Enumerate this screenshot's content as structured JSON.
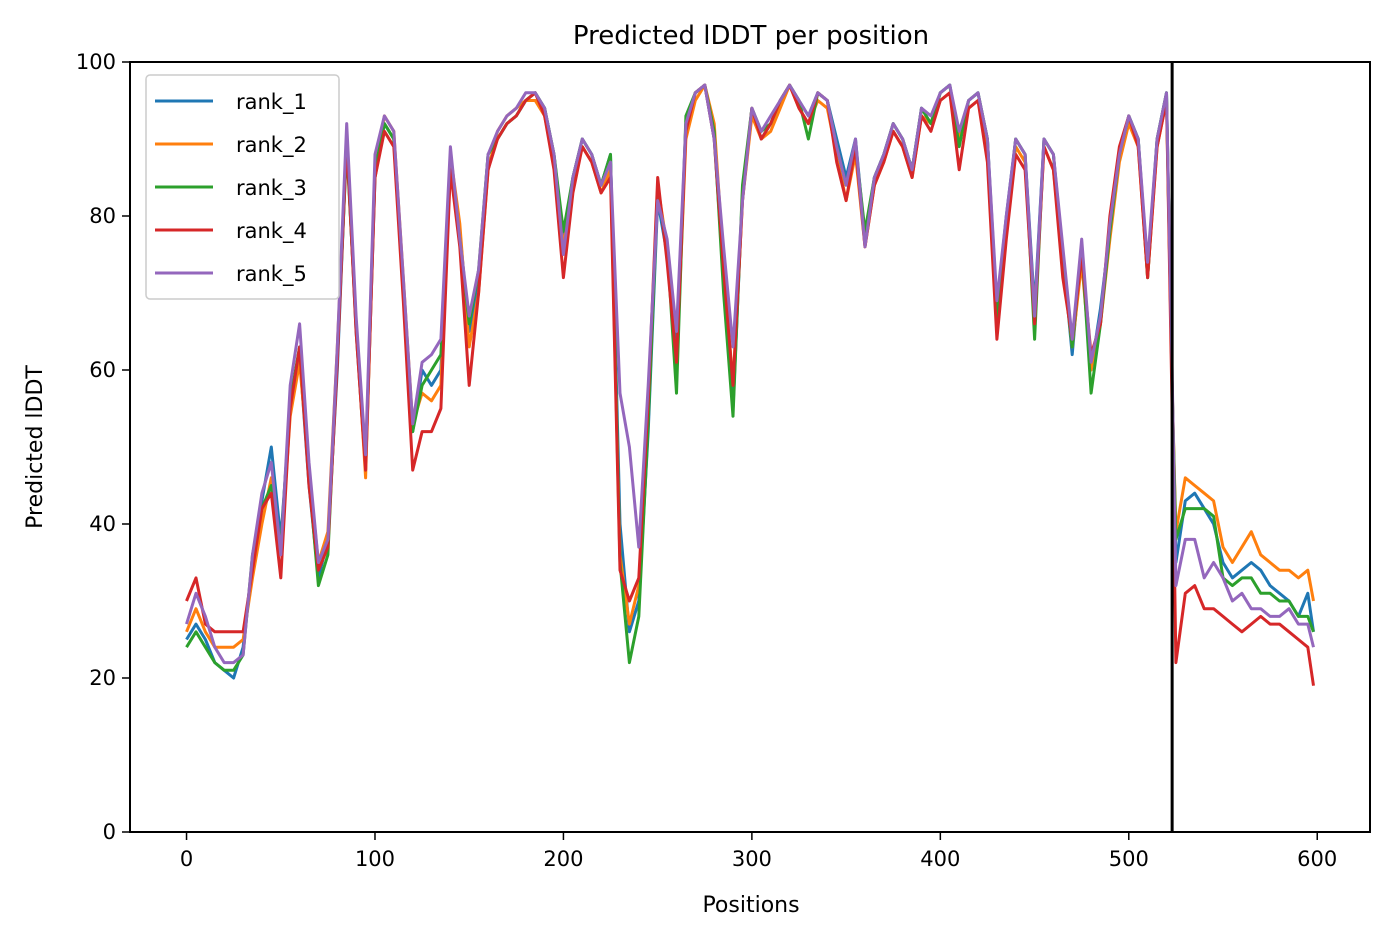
{
  "chart_data": {
    "type": "line",
    "title": "Predicted lDDT per position",
    "xlabel": "Positions",
    "ylabel": "Predicted lDDT",
    "xlim": [
      -30,
      628
    ],
    "ylim": [
      0,
      100
    ],
    "xticks": [
      0,
      100,
      200,
      300,
      400,
      500,
      600
    ],
    "yticks": [
      0,
      20,
      40,
      60,
      80,
      100
    ],
    "grid": false,
    "legend_position": "top-left",
    "vertical_line": {
      "x": 523,
      "color": "#000000"
    },
    "x": [
      0,
      5,
      10,
      15,
      20,
      25,
      30,
      35,
      40,
      45,
      50,
      55,
      60,
      65,
      70,
      75,
      80,
      85,
      90,
      95,
      100,
      105,
      110,
      115,
      120,
      125,
      130,
      135,
      140,
      145,
      150,
      155,
      160,
      165,
      170,
      175,
      180,
      185,
      190,
      195,
      200,
      205,
      210,
      215,
      220,
      225,
      230,
      235,
      240,
      245,
      250,
      255,
      260,
      265,
      270,
      275,
      280,
      285,
      290,
      295,
      300,
      305,
      310,
      315,
      320,
      325,
      330,
      335,
      340,
      345,
      350,
      355,
      360,
      365,
      370,
      375,
      380,
      385,
      390,
      395,
      400,
      405,
      410,
      415,
      420,
      425,
      430,
      435,
      440,
      445,
      450,
      455,
      460,
      465,
      470,
      475,
      480,
      485,
      490,
      495,
      500,
      505,
      510,
      515,
      520,
      523,
      525,
      530,
      535,
      540,
      545,
      550,
      555,
      560,
      565,
      570,
      575,
      580,
      585,
      590,
      595,
      598
    ],
    "series": [
      {
        "name": "rank_1",
        "color": "#1f77b4",
        "values": [
          25,
          27,
          25,
          22,
          21,
          20,
          24,
          35,
          43,
          50,
          38,
          55,
          62,
          45,
          33,
          38,
          60,
          90,
          65,
          47,
          85,
          92,
          90,
          70,
          52,
          60,
          58,
          60,
          87,
          78,
          65,
          72,
          88,
          90,
          92,
          93,
          95,
          96,
          94,
          88,
          77,
          85,
          90,
          88,
          84,
          88,
          40,
          26,
          30,
          52,
          82,
          75,
          62,
          92,
          96,
          97,
          90,
          72,
          55,
          83,
          94,
          90,
          92,
          95,
          97,
          95,
          93,
          96,
          95,
          90,
          85,
          90,
          77,
          85,
          88,
          92,
          90,
          86,
          94,
          92,
          96,
          97,
          90,
          95,
          96,
          90,
          68,
          80,
          90,
          88,
          68,
          90,
          88,
          75,
          62,
          76,
          60,
          68,
          78,
          88,
          93,
          90,
          73,
          90,
          96,
          58,
          35,
          43,
          44,
          42,
          40,
          35,
          33,
          34,
          35,
          34,
          32,
          31,
          30,
          28,
          31,
          26
        ]
      },
      {
        "name": "rank_2",
        "color": "#ff7f0e",
        "values": [
          26,
          29,
          26,
          24,
          24,
          24,
          25,
          33,
          40,
          46,
          36,
          54,
          61,
          47,
          35,
          39,
          63,
          90,
          66,
          46,
          86,
          93,
          91,
          72,
          53,
          57,
          56,
          58,
          88,
          79,
          63,
          70,
          86,
          91,
          93,
          94,
          95,
          95,
          93,
          87,
          76,
          84,
          89,
          87,
          83,
          86,
          36,
          27,
          32,
          55,
          84,
          76,
          60,
          90,
          95,
          97,
          92,
          74,
          58,
          82,
          93,
          90,
          91,
          94,
          97,
          94,
          92,
          95,
          94,
          88,
          82,
          88,
          76,
          84,
          87,
          91,
          89,
          85,
          93,
          92,
          95,
          96,
          90,
          94,
          95,
          89,
          66,
          78,
          89,
          87,
          67,
          89,
          86,
          74,
          63,
          74,
          60,
          66,
          77,
          87,
          92,
          89,
          72,
          89,
          95,
          58,
          39,
          46,
          45,
          44,
          43,
          37,
          35,
          37,
          39,
          36,
          35,
          34,
          34,
          33,
          34,
          30
        ]
      },
      {
        "name": "rank_3",
        "color": "#2ca02c",
        "values": [
          24,
          26,
          24,
          22,
          21,
          21,
          23,
          36,
          42,
          45,
          37,
          56,
          63,
          46,
          32,
          36,
          62,
          89,
          66,
          48,
          86,
          92,
          90,
          70,
          52,
          58,
          60,
          62,
          86,
          77,
          66,
          73,
          88,
          90,
          92,
          93,
          95,
          96,
          94,
          88,
          78,
          85,
          90,
          88,
          84,
          88,
          35,
          22,
          28,
          53,
          83,
          76,
          57,
          93,
          96,
          97,
          91,
          70,
          54,
          84,
          94,
          91,
          92,
          95,
          97,
          95,
          90,
          96,
          95,
          89,
          84,
          89,
          78,
          85,
          88,
          92,
          90,
          86,
          94,
          92,
          96,
          97,
          89,
          95,
          96,
          90,
          66,
          79,
          90,
          88,
          64,
          90,
          88,
          74,
          63,
          76,
          57,
          66,
          78,
          88,
          93,
          90,
          72,
          90,
          96,
          58,
          38,
          42,
          42,
          42,
          41,
          33,
          32,
          33,
          33,
          31,
          31,
          30,
          30,
          28,
          28,
          26
        ]
      },
      {
        "name": "rank_4",
        "color": "#d62728",
        "values": [
          30,
          33,
          27,
          26,
          26,
          26,
          26,
          34,
          42,
          44,
          33,
          55,
          63,
          45,
          34,
          37,
          61,
          90,
          65,
          47,
          85,
          91,
          89,
          69,
          47,
          52,
          52,
          55,
          86,
          76,
          58,
          70,
          86,
          90,
          92,
          93,
          95,
          96,
          93,
          86,
          72,
          83,
          89,
          87,
          83,
          85,
          34,
          30,
          33,
          56,
          85,
          74,
          61,
          91,
          96,
          97,
          90,
          73,
          58,
          82,
          94,
          90,
          92,
          95,
          97,
          94,
          92,
          96,
          95,
          87,
          82,
          89,
          76,
          84,
          87,
          91,
          89,
          85,
          93,
          91,
          95,
          96,
          86,
          94,
          95,
          87,
          64,
          77,
          88,
          86,
          66,
          89,
          86,
          72,
          64,
          75,
          62,
          66,
          80,
          89,
          93,
          89,
          72,
          89,
          95,
          55,
          22,
          31,
          32,
          29,
          29,
          28,
          27,
          26,
          27,
          28,
          27,
          27,
          26,
          25,
          24,
          19
        ]
      },
      {
        "name": "rank_5",
        "color": "#9467bd",
        "values": [
          27,
          31,
          28,
          24,
          22,
          22,
          23,
          36,
          44,
          48,
          36,
          58,
          66,
          48,
          35,
          38,
          63,
          92,
          67,
          49,
          88,
          93,
          91,
          72,
          53,
          61,
          62,
          64,
          89,
          77,
          67,
          73,
          88,
          91,
          93,
          94,
          96,
          96,
          94,
          88,
          75,
          85,
          90,
          88,
          84,
          87,
          57,
          50,
          37,
          58,
          82,
          77,
          65,
          92,
          96,
          97,
          90,
          76,
          63,
          82,
          94,
          91,
          93,
          95,
          97,
          95,
          93,
          96,
          95,
          89,
          84,
          90,
          76,
          85,
          88,
          92,
          90,
          86,
          94,
          93,
          96,
          97,
          91,
          95,
          96,
          90,
          69,
          80,
          90,
          88,
          67,
          90,
          88,
          76,
          64,
          77,
          61,
          67,
          79,
          88,
          93,
          90,
          74,
          90,
          96,
          60,
          32,
          38,
          38,
          33,
          35,
          33,
          30,
          31,
          29,
          29,
          28,
          28,
          29,
          27,
          27,
          24
        ]
      }
    ]
  }
}
